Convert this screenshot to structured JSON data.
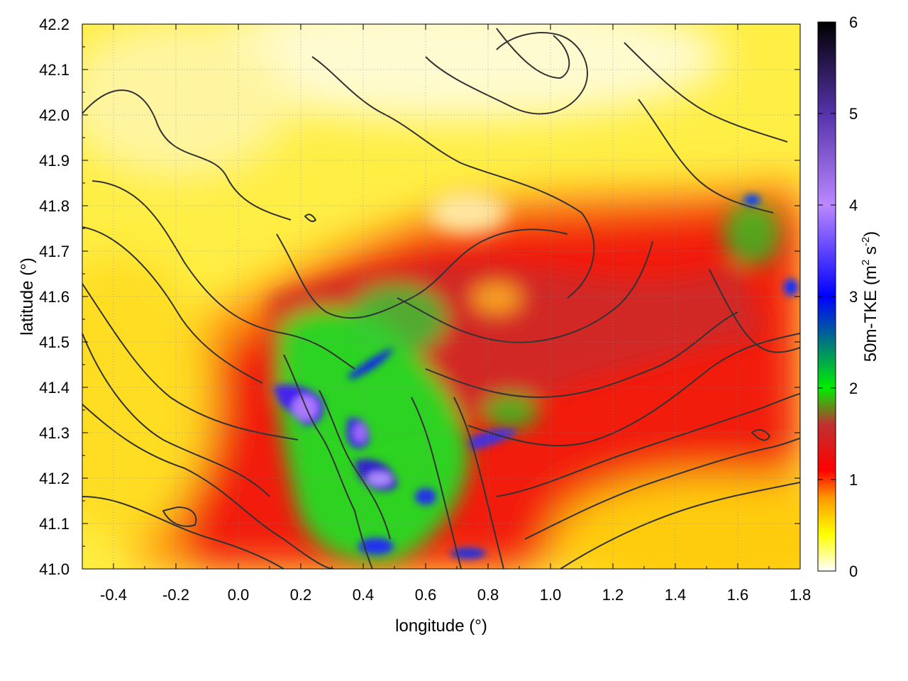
{
  "chart_data": {
    "type": "heatmap",
    "title": "",
    "xlabel": "longitude (°)",
    "ylabel": "latitude (°)",
    "xlim": [
      -0.5,
      1.8
    ],
    "ylim": [
      41.0,
      42.2
    ],
    "x_ticks": [
      "-0.4",
      "-0.2",
      "0.0",
      "0.2",
      "0.4",
      "0.6",
      "0.8",
      "1.0",
      "1.2",
      "1.4",
      "1.6",
      "1.8"
    ],
    "y_ticks": [
      "41.0",
      "41.1",
      "41.2",
      "41.3",
      "41.4",
      "41.5",
      "41.6",
      "41.7",
      "41.8",
      "41.9",
      "42.0",
      "42.1",
      "42.2"
    ],
    "colorbar": {
      "label_main": "50m-TKE (m",
      "label_sup1": "2",
      "label_mid": " s",
      "label_sup2": "-2",
      "label_end": ")",
      "range": [
        0,
        6
      ],
      "ticks": [
        "0",
        "1",
        "2",
        "3",
        "4",
        "5",
        "6"
      ],
      "stops": [
        {
          "value": 0.0,
          "color": "#ffffff"
        },
        {
          "value": 0.4,
          "color": "#ffff00"
        },
        {
          "value": 0.8,
          "color": "#ff9900"
        },
        {
          "value": 1.1,
          "color": "#ff0000"
        },
        {
          "value": 1.6,
          "color": "#c03030"
        },
        {
          "value": 2.0,
          "color": "#00ee00"
        },
        {
          "value": 3.0,
          "color": "#0000ff"
        },
        {
          "value": 4.0,
          "color": "#bb88ff"
        },
        {
          "value": 5.0,
          "color": "#5533aa"
        },
        {
          "value": 6.0,
          "color": "#000000"
        }
      ]
    },
    "grid": true,
    "contours": true,
    "field_notes": "Turbulent kinetic energy at 50 m: low (white/yellow) in north and southeast, high (red) across a band from west-southwest to east, peaks (green/blue/violet) near longitude 0.1–0.9, latitude 41.0–41.5"
  }
}
